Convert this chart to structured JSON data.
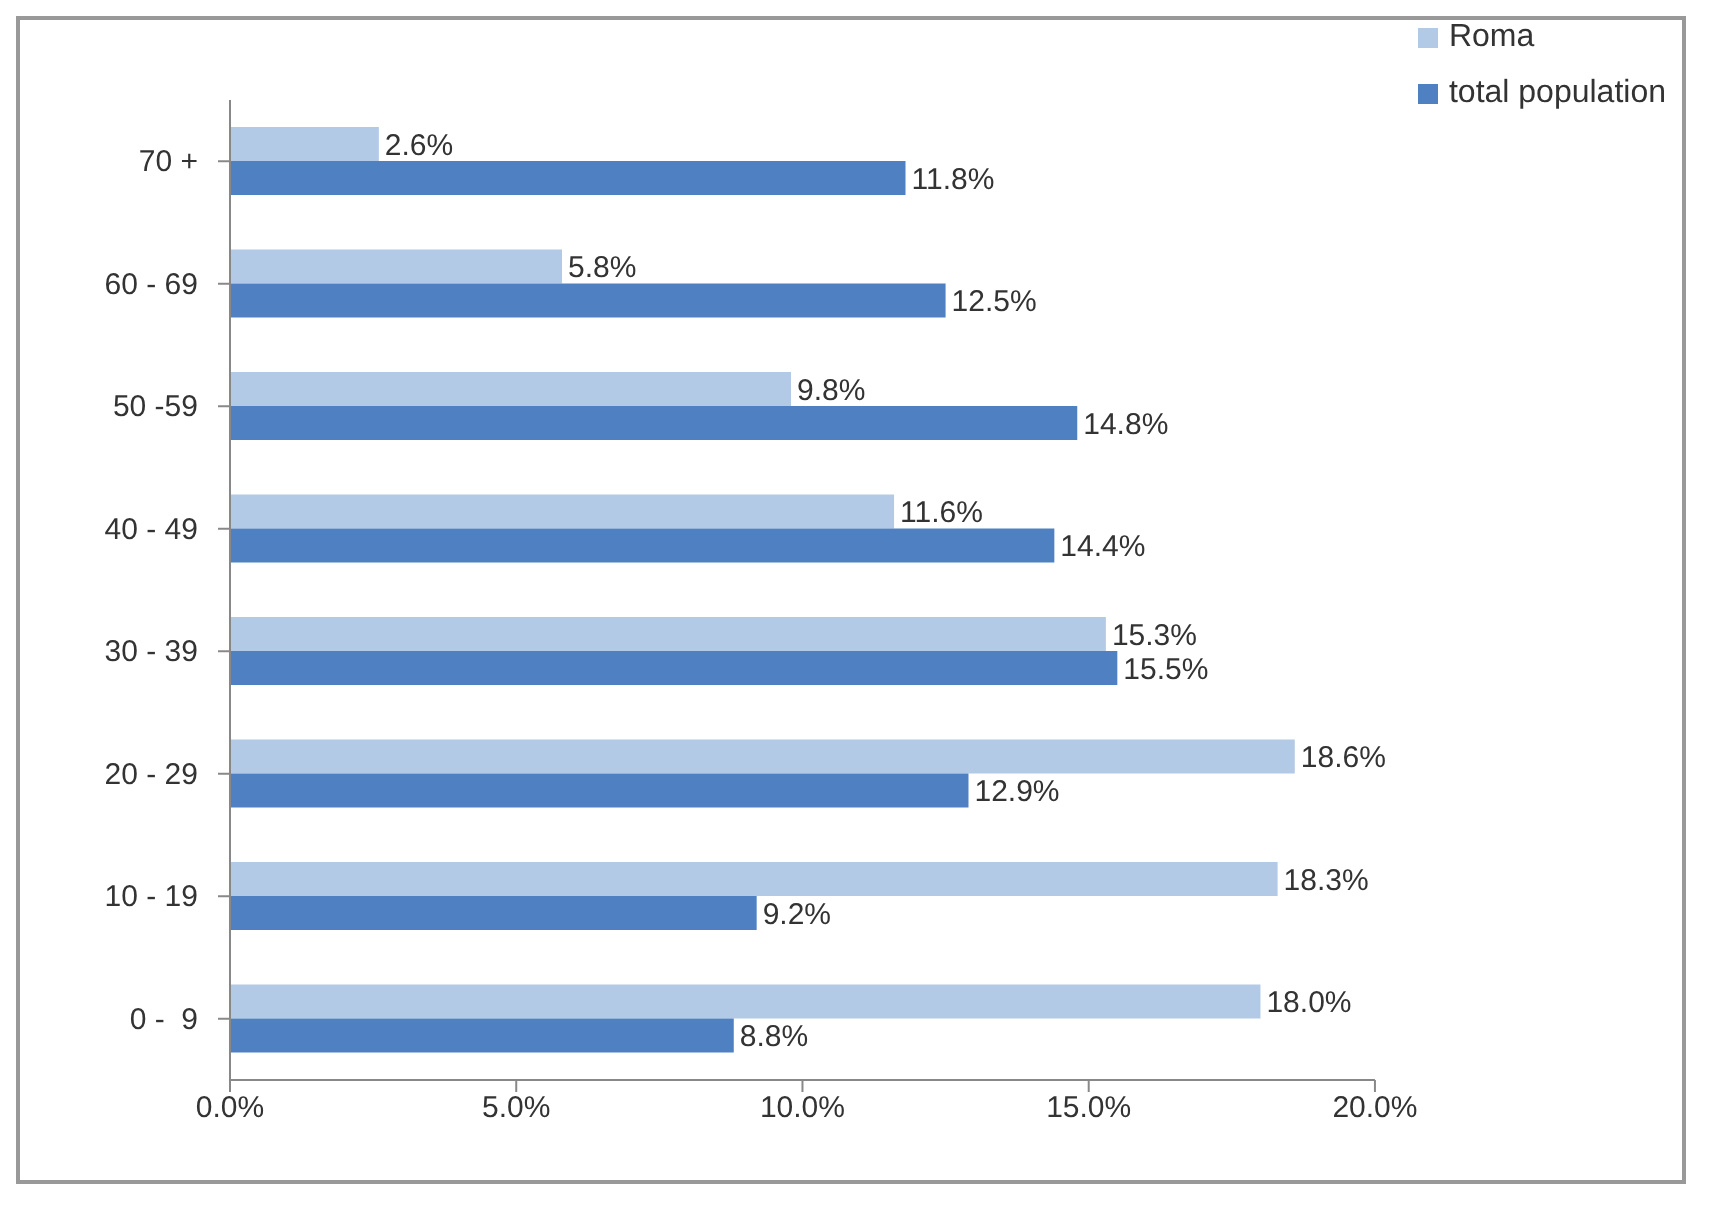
{
  "chart_data": {
    "type": "bar",
    "orientation": "horizontal",
    "categories": [
      "70 +",
      "60 - 69",
      "50 -59",
      "40 - 49",
      "30 - 39",
      "20 - 29",
      "10 - 19",
      "0 -  9"
    ],
    "series": [
      {
        "name": "Roma",
        "color": "#b3cae6",
        "values": [
          2.6,
          5.8,
          9.8,
          11.6,
          15.3,
          18.6,
          18.3,
          18.0
        ],
        "value_labels": [
          "2.6%",
          "5.8%",
          "9.8%",
          "11.6%",
          "15.3%",
          "18.6%",
          "18.3%",
          "18.0%"
        ]
      },
      {
        "name": "total population",
        "color": "#4f81c2",
        "values": [
          11.8,
          12.5,
          14.8,
          14.4,
          15.5,
          12.9,
          9.2,
          8.8
        ],
        "value_labels": [
          "11.8%",
          "12.5%",
          "14.8%",
          "14.4%",
          "15.5%",
          "12.9%",
          "9.2%",
          "8.8%"
        ]
      }
    ],
    "xlim": [
      0,
      20
    ],
    "xticks": [
      {
        "value": 0,
        "label": "0.0%"
      },
      {
        "value": 5,
        "label": "5.0%"
      },
      {
        "value": 10,
        "label": "10.0%"
      },
      {
        "value": 15,
        "label": "15.0%"
      },
      {
        "value": 20,
        "label": "20.0%"
      }
    ],
    "grid": false,
    "legend": "top right"
  }
}
